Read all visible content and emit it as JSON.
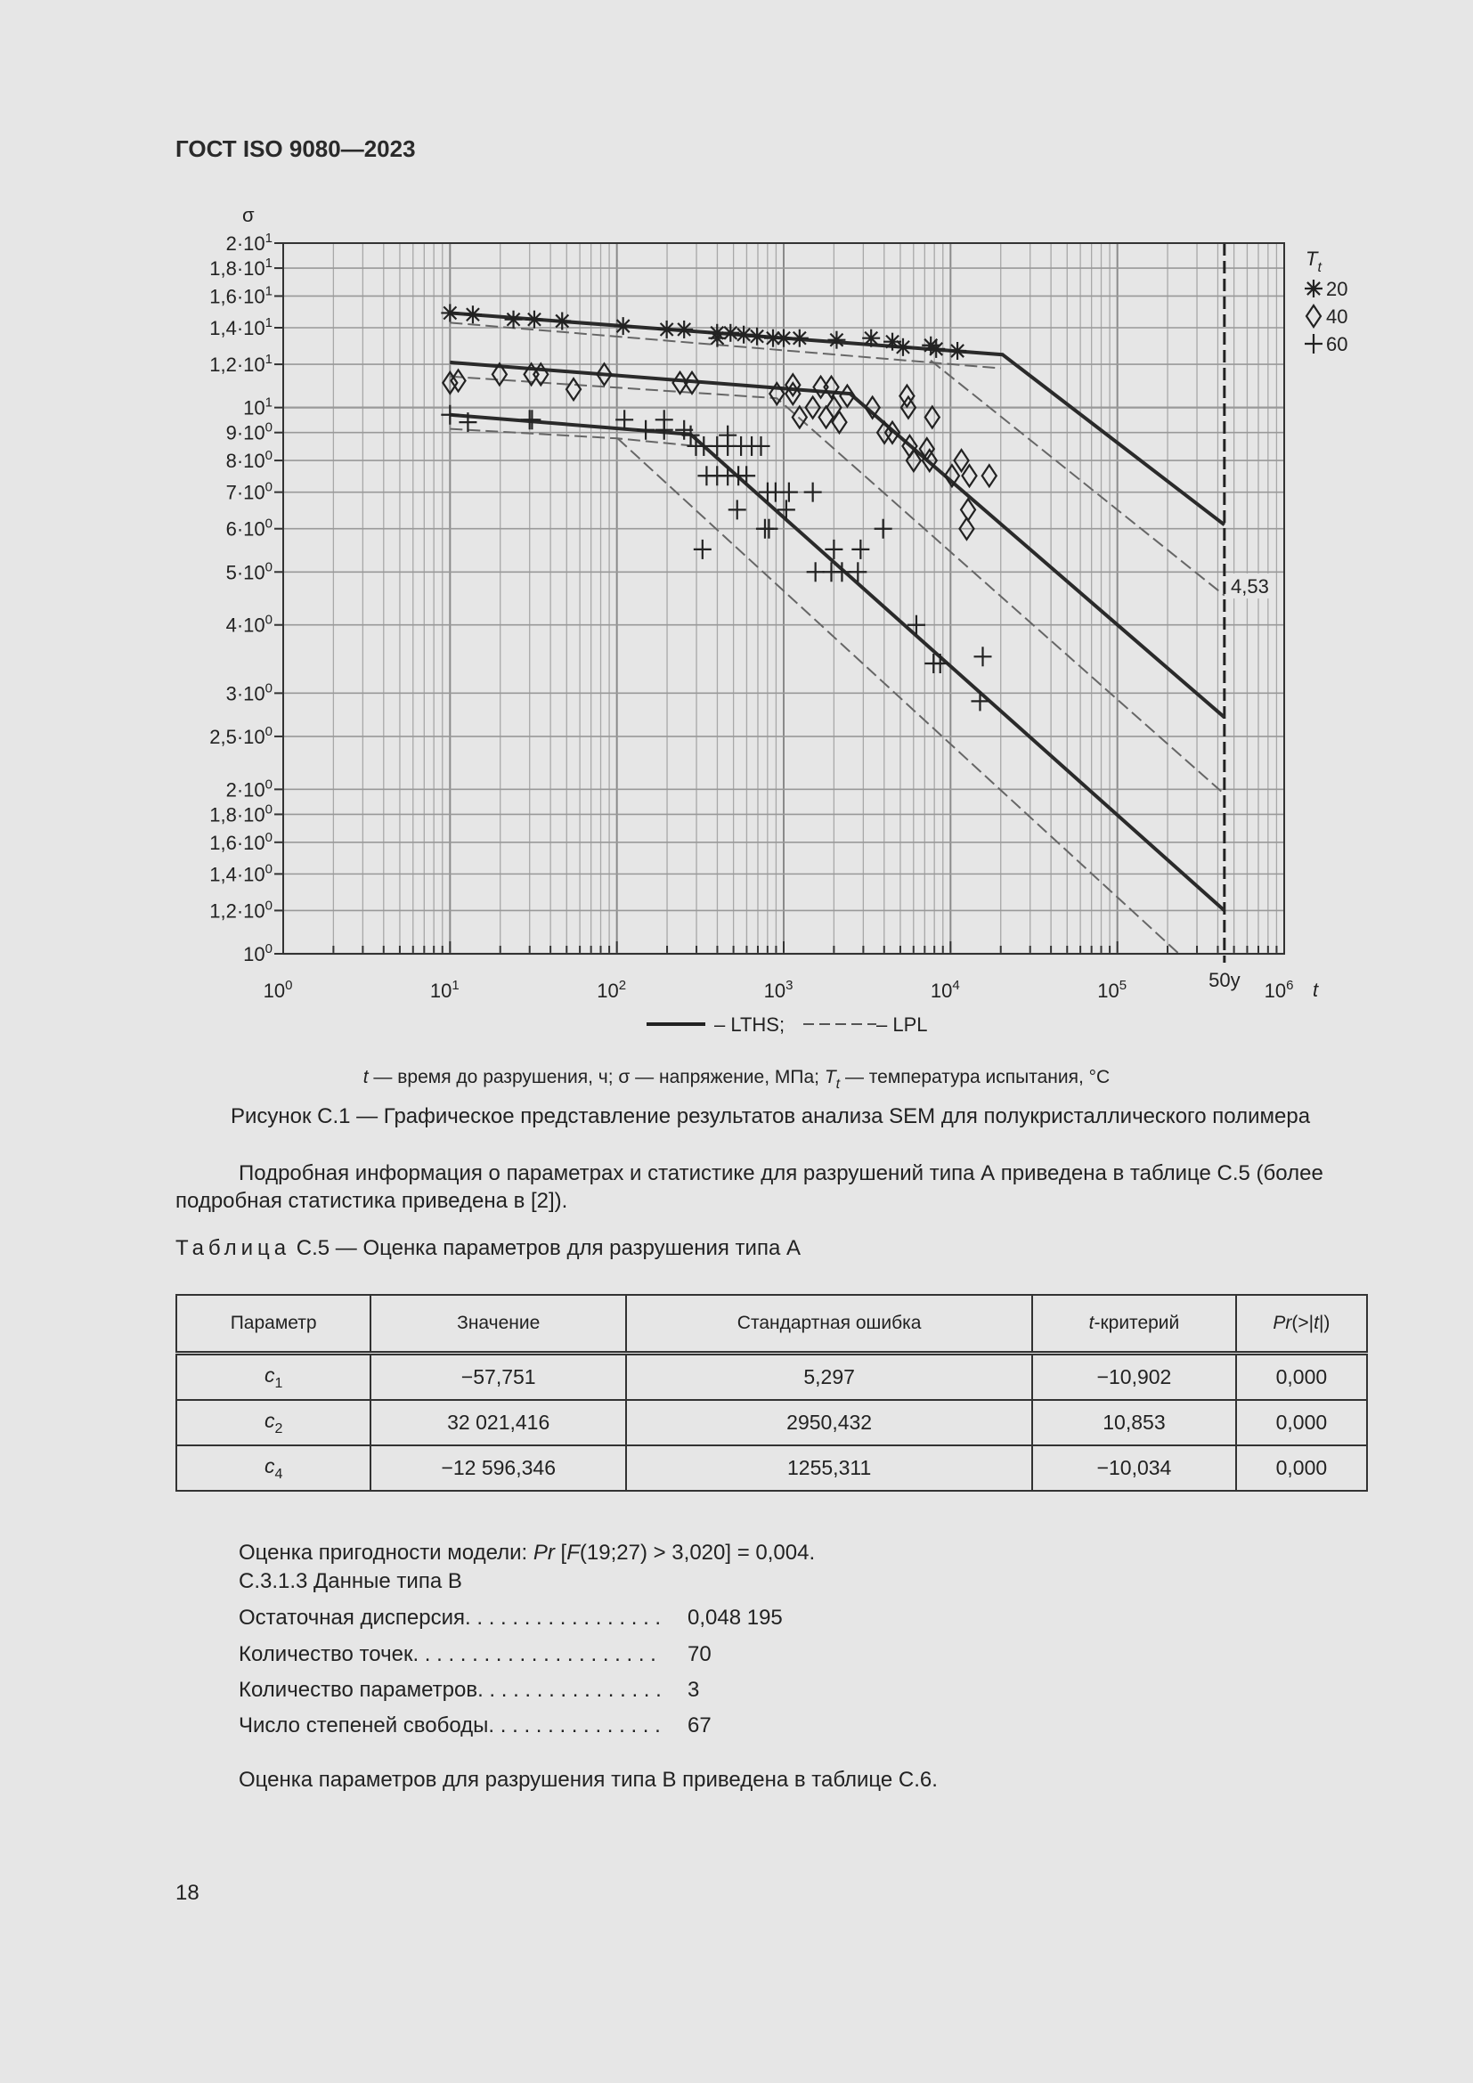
{
  "header": {
    "title": "ГОСТ ISO 9080—2023"
  },
  "chart_data": {
    "type": "scatter",
    "title": "",
    "xlabel": "t",
    "ylabel": "σ",
    "x_scale": "log",
    "y_scale": "log",
    "xlim": [
      1,
      1000000
    ],
    "ylim": [
      1,
      20
    ],
    "grid": true,
    "x_ticks": [
      {
        "base": "10",
        "exp": "0",
        "value": 1
      },
      {
        "base": "10",
        "exp": "1",
        "value": 10
      },
      {
        "base": "10",
        "exp": "2",
        "value": 100
      },
      {
        "base": "10",
        "exp": "3",
        "value": 1000
      },
      {
        "base": "10",
        "exp": "4",
        "value": 10000
      },
      {
        "base": "10",
        "exp": "5",
        "value": 100000
      },
      {
        "base": "10",
        "exp": "6",
        "value": 1000000
      }
    ],
    "y_ticks": [
      {
        "base": "2·10",
        "exp": "1",
        "value": 20
      },
      {
        "base": "1,8·10",
        "exp": "1",
        "value": 18
      },
      {
        "base": "1,6·10",
        "exp": "1",
        "value": 16
      },
      {
        "base": "1,4·10",
        "exp": "1",
        "value": 14
      },
      {
        "base": "1,2·10",
        "exp": "1",
        "value": 12
      },
      {
        "base": "10",
        "exp": "1",
        "value": 10
      },
      {
        "base": "9·10",
        "exp": "0",
        "value": 9
      },
      {
        "base": "8·10",
        "exp": "0",
        "value": 8
      },
      {
        "base": "7·10",
        "exp": "0",
        "value": 7
      },
      {
        "base": "6·10",
        "exp": "0",
        "value": 6
      },
      {
        "base": "5·10",
        "exp": "0",
        "value": 5
      },
      {
        "base": "4·10",
        "exp": "0",
        "value": 4
      },
      {
        "base": "3·10",
        "exp": "0",
        "value": 3
      },
      {
        "base": "2,5·10",
        "exp": "0",
        "value": 2.5
      },
      {
        "base": "2·10",
        "exp": "0",
        "value": 2
      },
      {
        "base": "1,8·10",
        "exp": "0",
        "value": 1.8
      },
      {
        "base": "1,6·10",
        "exp": "0",
        "value": 1.6
      },
      {
        "base": "1,4·10",
        "exp": "0",
        "value": 1.4
      },
      {
        "base": "1,2·10",
        "exp": "0",
        "value": 1.2
      },
      {
        "base": "10",
        "exp": "0",
        "value": 1
      }
    ],
    "legend": {
      "title": "T",
      "title_sub": "t",
      "placement": "right"
    },
    "series": [
      {
        "name": "20",
        "marker": "asterisk",
        "points": [
          [
            10,
            14.9
          ],
          [
            13.7,
            14.8
          ],
          [
            24,
            14.5
          ],
          [
            32,
            14.5
          ],
          [
            47,
            14.4
          ],
          [
            109,
            14.1
          ],
          [
            199,
            13.9
          ],
          [
            253,
            13.9
          ],
          [
            399,
            13.7
          ],
          [
            400,
            13.4
          ],
          [
            480,
            13.7
          ],
          [
            576,
            13.6
          ],
          [
            692,
            13.5
          ],
          [
            863,
            13.4
          ],
          [
            1000,
            13.4
          ],
          [
            1245,
            13.4
          ],
          [
            2076,
            13.3
          ],
          [
            3343,
            13.4
          ],
          [
            4483,
            13.2
          ],
          [
            5190,
            12.9
          ],
          [
            7620,
            13.0
          ],
          [
            8200,
            12.8
          ],
          [
            11000,
            12.7
          ]
        ]
      },
      {
        "name": "40",
        "marker": "diamond",
        "points": [
          [
            10,
            11.1
          ],
          [
            11.2,
            11.2
          ],
          [
            19.8,
            11.5
          ],
          [
            30.7,
            11.5
          ],
          [
            35,
            11.5
          ],
          [
            55,
            10.8
          ],
          [
            84,
            11.5
          ],
          [
            239,
            11.1
          ],
          [
            282,
            11.1
          ],
          [
            910,
            10.6
          ],
          [
            1135,
            11.0
          ],
          [
            1135,
            10.6
          ],
          [
            1245,
            9.6
          ],
          [
            1494,
            10.0
          ],
          [
            1667,
            10.9
          ],
          [
            1795,
            9.6
          ],
          [
            1930,
            10.9
          ],
          [
            2000,
            10.0
          ],
          [
            2155,
            9.4
          ],
          [
            2405,
            10.5
          ],
          [
            3405,
            10.0
          ],
          [
            4015,
            9.0
          ],
          [
            4480,
            9.0
          ],
          [
            5480,
            10.5
          ],
          [
            5585,
            10.0
          ],
          [
            5690,
            8.5
          ],
          [
            6010,
            8.0
          ],
          [
            7215,
            8.4
          ],
          [
            7485,
            8.0
          ],
          [
            7770,
            9.6
          ],
          [
            10200,
            7.5
          ],
          [
            11620,
            8.0
          ],
          [
            12500,
            6.0
          ],
          [
            12970,
            7.5
          ],
          [
            12740,
            6.5
          ],
          [
            17060,
            7.5
          ]
        ]
      },
      {
        "name": "60",
        "marker": "cross",
        "points": [
          [
            10,
            9.7
          ],
          [
            12.8,
            9.4
          ],
          [
            30,
            9.5
          ],
          [
            31,
            9.5
          ],
          [
            111,
            9.5
          ],
          [
            149,
            9.1
          ],
          [
            192,
            9.5
          ],
          [
            192,
            9.1
          ],
          [
            253,
            9.1
          ],
          [
            277,
            8.9
          ],
          [
            298,
            8.5
          ],
          [
            332,
            8.5
          ],
          [
            399,
            8.5
          ],
          [
            462,
            8.9
          ],
          [
            462,
            8.5
          ],
          [
            555,
            8.5
          ],
          [
            643,
            8.5
          ],
          [
            731,
            8.5
          ],
          [
            345,
            7.5
          ],
          [
            399,
            7.5
          ],
          [
            462,
            7.5
          ],
          [
            535,
            7.5
          ],
          [
            598,
            7.5
          ],
          [
            526,
            6.5
          ],
          [
            801,
            7.0
          ],
          [
            894,
            7.0
          ],
          [
            1075,
            7.0
          ],
          [
            1494,
            7.0
          ],
          [
            326,
            5.5
          ],
          [
            772,
            6.0
          ],
          [
            816,
            6.0
          ],
          [
            1036,
            6.5
          ],
          [
            3945,
            6.0
          ],
          [
            1550,
            5.0
          ],
          [
            1930,
            5.0
          ],
          [
            2235,
            5.0
          ],
          [
            2785,
            5.0
          ],
          [
            2000,
            5.5
          ],
          [
            2890,
            5.5
          ],
          [
            6240,
            4.0
          ],
          [
            7910,
            3.4
          ],
          [
            8670,
            3.4
          ],
          [
            15600,
            3.5
          ],
          [
            15030,
            2.9
          ]
        ]
      }
    ],
    "lths": [
      {
        "name": "20",
        "points": [
          [
            10,
            14.9
          ],
          [
            20500,
            12.5
          ],
          [
            438000,
            6.1
          ]
        ]
      },
      {
        "name": "40",
        "points": [
          [
            10,
            12.1
          ],
          [
            2500,
            10.6
          ],
          [
            438000,
            2.71
          ]
        ]
      },
      {
        "name": "60",
        "points": [
          [
            10,
            9.7
          ],
          [
            277,
            8.93
          ],
          [
            438000,
            1.2
          ]
        ]
      }
    ],
    "lpl": [
      {
        "name": "20",
        "points": [
          [
            10,
            14.3
          ],
          [
            20000,
            11.8
          ]
        ]
      },
      {
        "name": "20",
        "points": [
          [
            7600,
            12.2
          ],
          [
            438000,
            4.53
          ]
        ]
      },
      {
        "name": "40",
        "points": [
          [
            10,
            11.4
          ],
          [
            910,
            10.4
          ],
          [
            438000,
            1.96
          ]
        ]
      },
      {
        "name": "60",
        "points": [
          [
            10,
            9.14
          ],
          [
            101,
            8.78
          ],
          [
            300,
            8.5
          ]
        ]
      },
      {
        "name": "60",
        "points": [
          [
            101,
            8.78
          ],
          [
            234000,
            1.0
          ]
        ]
      }
    ],
    "marker_line_50y": {
      "value": 438000,
      "label": "50y"
    },
    "annotation_value": "4,53",
    "line_legend": {
      "lths": "– LTHS;",
      "lpl": "– LPL"
    }
  },
  "figure": {
    "note_parts": [
      "t",
      " — время до разрушения, ч; σ — напряжение, МПа; ",
      "T",
      "t",
      " — температура испытания, °С"
    ],
    "caption": "Рисунок С.1 — Графическое представление результатов анализа SEM для полукристаллического полимера"
  },
  "paragraph1": "Подробная информация о параметрах и статистике для разрушений типа А приведена в таблице С.5 (более подробная статистика приведена в [2]).",
  "table": {
    "caption_prefix": "Таблица",
    "caption": " С.5 — Оценка параметров для разрушения типа А",
    "headers": [
      "Параметр",
      "Значение",
      "Стандартная ошибка",
      "t",
      "-критерий",
      "Pr",
      "(>|",
      "t",
      "|)"
    ],
    "rows": [
      {
        "param": "c",
        "sub": "1",
        "value": "−57,751",
        "se": "5,297",
        "t": "−10,902",
        "pr": "0,000"
      },
      {
        "param": "c",
        "sub": "2",
        "value": "32 021,416",
        "se": "2950,432",
        "t": "10,853",
        "pr": "0,000"
      },
      {
        "param": "c",
        "sub": "4",
        "value": "−12 596,346",
        "se": "1255,311",
        "t": "−10,034",
        "pr": "0,000"
      }
    ]
  },
  "fit": {
    "prefix": "Оценка пригодности модели: ",
    "pr": "Pr",
    "mid": " [",
    "f": "F",
    "rest": "(19;27) > 3,020] = 0,004."
  },
  "section": "С.3.1.3  Данные типа В",
  "stats": [
    {
      "label": "Остаточная дисперсия. . . . . . . . . . . . . . . . .",
      "value": "0,048 195"
    },
    {
      "label": "Количество точек. . . . . . . . . . . . . . . . . . . . .",
      "value": "70"
    },
    {
      "label": "Количество параметров. . . . . . . . . . . . . . . .",
      "value": "3"
    },
    {
      "label": "Число степеней свободы. . . . . . . . . . . . . . .",
      "value": "67"
    }
  ],
  "paragraph2": "Оценка параметров для разрушения типа В приведена в таблице С.6.",
  "page_number": "18"
}
